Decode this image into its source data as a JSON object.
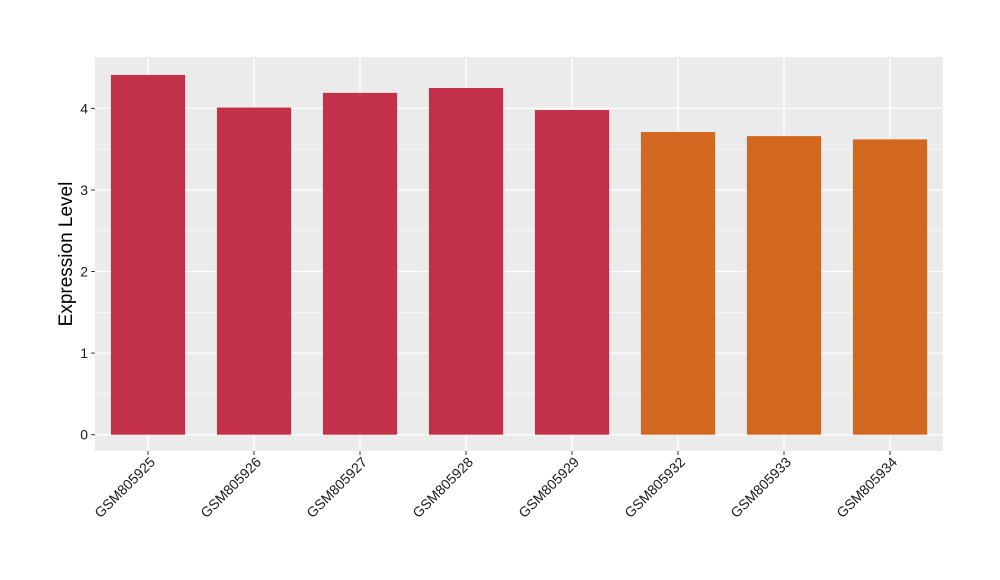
{
  "chart_data": {
    "type": "bar",
    "title": "",
    "xlabel": "",
    "ylabel": "Expression Level",
    "categories": [
      "GSM805925",
      "GSM805926",
      "GSM805927",
      "GSM805928",
      "GSM805929",
      "GSM805932",
      "GSM805933",
      "GSM805934"
    ],
    "values": [
      4.41,
      4.01,
      4.19,
      4.25,
      3.98,
      3.71,
      3.66,
      3.62
    ],
    "bar_colors": [
      "#c33049",
      "#c33049",
      "#c33049",
      "#c33049",
      "#c33049",
      "#d2681f",
      "#d2681f",
      "#d2681f"
    ],
    "ylim": [
      -0.2,
      4.63
    ],
    "yticks": [
      0,
      1,
      2,
      3,
      4
    ],
    "grid": true,
    "panel_background": "#ebebeb",
    "grid_color": "#ffffff",
    "legend": "none"
  }
}
